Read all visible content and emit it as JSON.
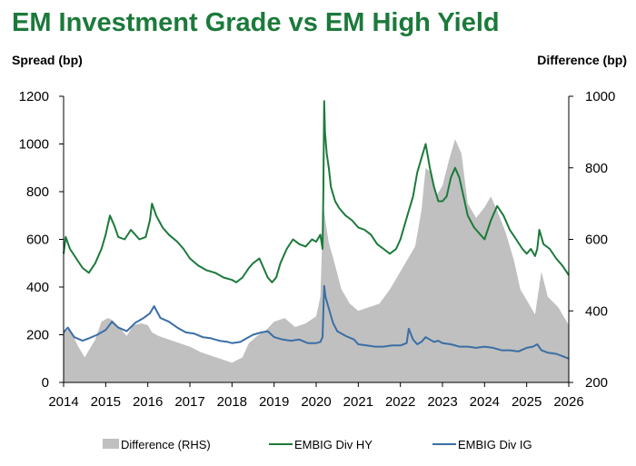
{
  "title": "EM Investment Grade vs EM High Yield",
  "ylabel_left": "Spread (bp)",
  "ylabel_right": "Difference (bp)",
  "chart_data": {
    "type": "line",
    "title": "EM Investment Grade vs EM High Yield",
    "ylabel": "Spread (bp)",
    "y2label": "Difference (bp)",
    "ylim": [
      0,
      1200
    ],
    "y2lim": [
      200,
      1000
    ],
    "xlim": [
      2014,
      2026
    ],
    "xticks": [
      "2014",
      "2015",
      "2016",
      "2017",
      "2018",
      "2019",
      "2020",
      "2021",
      "2022",
      "2023",
      "2024",
      "2025",
      "2026"
    ],
    "yticks": [
      "0",
      "200",
      "400",
      "600",
      "800",
      "1000",
      "1200"
    ],
    "y2ticks": [
      "200",
      "400",
      "600",
      "800",
      "1000"
    ],
    "legend_position": "bottom",
    "grid": false,
    "colors": {
      "hy": "#1b7a3a",
      "ig": "#3b6ea5",
      "diff": "#c0c0c0"
    },
    "series": [
      {
        "name": "Difference (RHS)",
        "axis": "right",
        "style": "area",
        "x": [
          2014.0,
          2014.15,
          2014.35,
          2014.5,
          2014.6,
          2014.75,
          2014.9,
          2015.05,
          2015.15,
          2015.35,
          2015.5,
          2015.65,
          2015.85,
          2016.0,
          2016.1,
          2016.25,
          2016.5,
          2016.75,
          2017.0,
          2017.25,
          2017.5,
          2017.75,
          2018.0,
          2018.25,
          2018.4,
          2018.6,
          2018.8,
          2019.0,
          2019.25,
          2019.5,
          2019.75,
          2020.0,
          2020.1,
          2020.17,
          2020.22,
          2020.3,
          2020.4,
          2020.6,
          2020.8,
          2021.0,
          2021.25,
          2021.5,
          2021.75,
          2022.0,
          2022.15,
          2022.35,
          2022.5,
          2022.6,
          2022.7,
          2022.85,
          2023.0,
          2023.15,
          2023.3,
          2023.45,
          2023.6,
          2023.8,
          2024.0,
          2024.15,
          2024.3,
          2024.5,
          2024.7,
          2024.85,
          2025.0,
          2025.2,
          2025.35,
          2025.5,
          2025.75,
          2026.0
        ],
        "values": [
          340,
          350,
          300,
          270,
          290,
          320,
          370,
          380,
          375,
          350,
          330,
          360,
          365,
          360,
          340,
          330,
          320,
          310,
          300,
          285,
          275,
          265,
          255,
          270,
          310,
          330,
          345,
          370,
          380,
          355,
          365,
          385,
          440,
          700,
          650,
          590,
          550,
          460,
          420,
          400,
          410,
          420,
          460,
          510,
          540,
          580,
          680,
          800,
          790,
          720,
          750,
          820,
          880,
          840,
          700,
          660,
          690,
          720,
          680,
          620,
          540,
          460,
          430,
          390,
          510,
          440,
          410,
          360
        ]
      },
      {
        "name": "EMBIG Div HY",
        "axis": "left",
        "style": "line",
        "x": [
          2014.0,
          2014.05,
          2014.15,
          2014.3,
          2014.45,
          2014.6,
          2014.75,
          2014.9,
          2015.0,
          2015.1,
          2015.2,
          2015.3,
          2015.45,
          2015.6,
          2015.8,
          2015.95,
          2016.05,
          2016.1,
          2016.2,
          2016.35,
          2016.5,
          2016.7,
          2016.85,
          2017.0,
          2017.2,
          2017.4,
          2017.6,
          2017.8,
          2018.0,
          2018.1,
          2018.25,
          2018.4,
          2018.5,
          2018.65,
          2018.75,
          2018.85,
          2018.95,
          2019.05,
          2019.15,
          2019.3,
          2019.45,
          2019.6,
          2019.75,
          2019.9,
          2020.0,
          2020.1,
          2020.15,
          2020.17,
          2020.19,
          2020.21,
          2020.25,
          2020.3,
          2020.35,
          2020.45,
          2020.55,
          2020.7,
          2020.85,
          2021.0,
          2021.15,
          2021.3,
          2021.45,
          2021.6,
          2021.75,
          2021.9,
          2022.0,
          2022.1,
          2022.2,
          2022.3,
          2022.4,
          2022.5,
          2022.6,
          2022.7,
          2022.8,
          2022.9,
          2023.0,
          2023.1,
          2023.2,
          2023.3,
          2023.4,
          2023.5,
          2023.6,
          2023.75,
          2023.9,
          2024.0,
          2024.15,
          2024.3,
          2024.45,
          2024.6,
          2024.75,
          2024.9,
          2025.0,
          2025.1,
          2025.2,
          2025.25,
          2025.3,
          2025.4,
          2025.55,
          2025.7,
          2025.85,
          2026.0
        ],
        "values": [
          540,
          610,
          560,
          520,
          480,
          460,
          500,
          560,
          620,
          700,
          660,
          610,
          600,
          640,
          600,
          610,
          680,
          750,
          700,
          650,
          620,
          590,
          560,
          520,
          490,
          470,
          460,
          440,
          430,
          420,
          440,
          480,
          500,
          520,
          480,
          440,
          420,
          440,
          500,
          560,
          600,
          580,
          570,
          600,
          590,
          620,
          560,
          800,
          1180,
          1050,
          960,
          900,
          820,
          760,
          730,
          700,
          680,
          650,
          640,
          620,
          580,
          560,
          540,
          560,
          600,
          660,
          720,
          780,
          880,
          940,
          1000,
          900,
          820,
          760,
          760,
          780,
          860,
          900,
          860,
          780,
          700,
          650,
          620,
          600,
          680,
          740,
          700,
          640,
          600,
          560,
          540,
          560,
          530,
          560,
          640,
          580,
          560,
          520,
          490,
          450
        ]
      },
      {
        "name": "EMBIG Div IG",
        "axis": "left",
        "style": "line",
        "x": [
          2014.0,
          2014.1,
          2014.25,
          2014.45,
          2014.6,
          2014.8,
          2015.0,
          2015.15,
          2015.3,
          2015.5,
          2015.7,
          2015.9,
          2016.05,
          2016.15,
          2016.3,
          2016.5,
          2016.7,
          2016.9,
          2017.1,
          2017.3,
          2017.5,
          2017.7,
          2017.9,
          2018.0,
          2018.2,
          2018.35,
          2018.5,
          2018.7,
          2018.85,
          2019.0,
          2019.2,
          2019.4,
          2019.6,
          2019.8,
          2020.0,
          2020.1,
          2020.15,
          2020.17,
          2020.19,
          2020.22,
          2020.3,
          2020.4,
          2020.5,
          2020.7,
          2020.9,
          2021.0,
          2021.2,
          2021.4,
          2021.6,
          2021.8,
          2022.0,
          2022.15,
          2022.2,
          2022.3,
          2022.4,
          2022.5,
          2022.6,
          2022.7,
          2022.8,
          2022.9,
          2023.0,
          2023.2,
          2023.4,
          2023.6,
          2023.8,
          2024.0,
          2024.2,
          2024.4,
          2024.6,
          2024.8,
          2025.0,
          2025.15,
          2025.25,
          2025.35,
          2025.5,
          2025.7,
          2025.85,
          2026.0
        ],
        "values": [
          210,
          230,
          190,
          175,
          185,
          200,
          220,
          255,
          230,
          215,
          250,
          270,
          290,
          320,
          270,
          255,
          230,
          210,
          205,
          190,
          185,
          175,
          170,
          165,
          170,
          185,
          200,
          210,
          215,
          190,
          180,
          175,
          180,
          165,
          165,
          170,
          190,
          300,
          405,
          360,
          310,
          250,
          215,
          195,
          180,
          160,
          155,
          150,
          150,
          155,
          155,
          165,
          225,
          180,
          160,
          170,
          190,
          180,
          170,
          175,
          165,
          160,
          150,
          150,
          145,
          150,
          145,
          135,
          135,
          130,
          145,
          150,
          160,
          135,
          125,
          120,
          110,
          100
        ]
      }
    ]
  }
}
